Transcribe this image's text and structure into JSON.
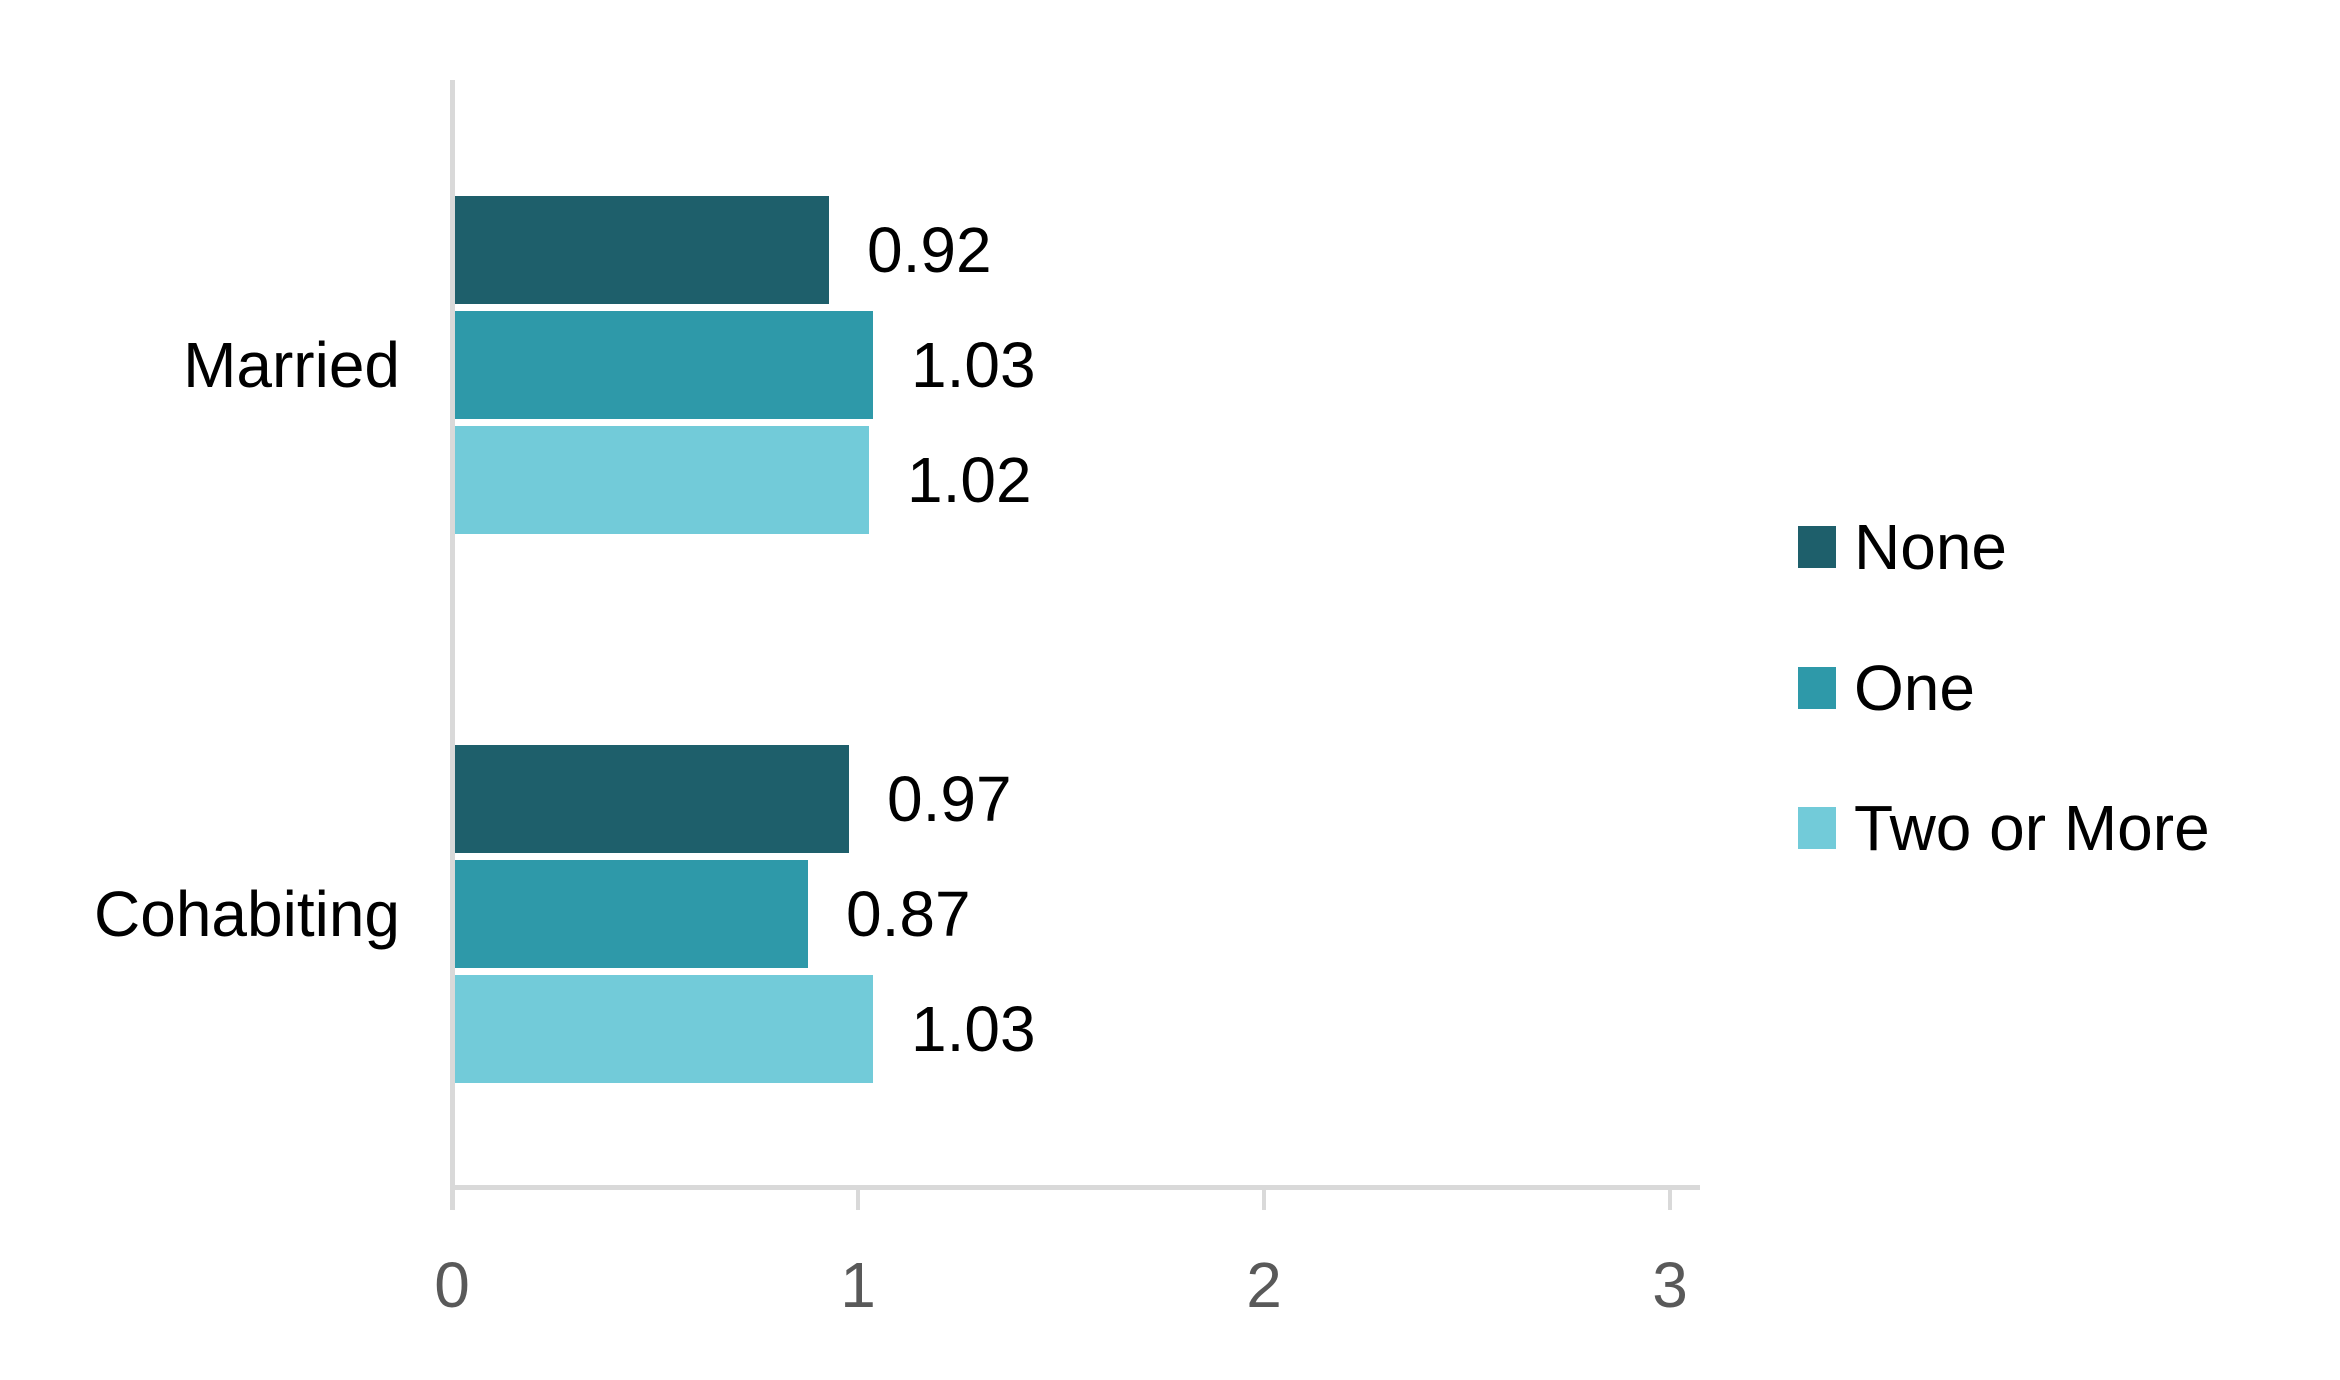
{
  "chart_data": {
    "type": "bar",
    "orientation": "horizontal",
    "title": "",
    "xlabel": "",
    "ylabel": "",
    "categories": [
      "Married",
      "Cohabiting"
    ],
    "series": [
      {
        "name": "None",
        "color": "#1e5f6b",
        "values": [
          0.92,
          0.97
        ],
        "labels": [
          "0.92",
          "0.97"
        ]
      },
      {
        "name": "One",
        "color": "#2e99a9",
        "values": [
          1.03,
          0.87
        ],
        "labels": [
          "1.03",
          "0.87"
        ]
      },
      {
        "name": "Two or More",
        "color": "#72cbd9",
        "values": [
          1.02,
          1.03
        ],
        "labels": [
          "1.02",
          "1.03"
        ]
      }
    ],
    "xlim": [
      0,
      3.1
    ],
    "xticks": [
      0,
      1,
      2,
      3
    ],
    "xtick_labels": [
      "0",
      "1",
      "2",
      "3"
    ],
    "grid": false,
    "legend_position": "right",
    "axis_color": "#d9d9d9",
    "tick_label_color": "#595959",
    "text_color": "#000000",
    "background_color": "#ffffff"
  }
}
